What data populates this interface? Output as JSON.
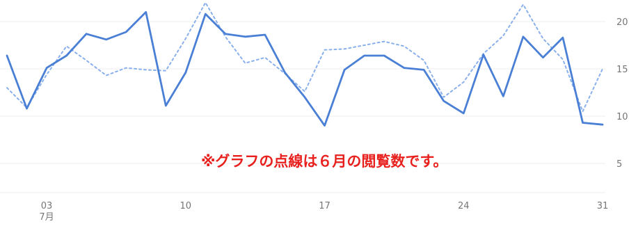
{
  "chart_data": {
    "type": "line",
    "x": [
      "07-01",
      "07-02",
      "07-03",
      "07-04",
      "07-05",
      "07-06",
      "07-07",
      "07-08",
      "07-09",
      "07-10",
      "07-11",
      "07-12",
      "07-13",
      "07-14",
      "07-15",
      "07-16",
      "07-17",
      "07-18",
      "07-19",
      "07-20",
      "07-21",
      "07-22",
      "07-23",
      "07-24",
      "07-25",
      "07-26",
      "07-27",
      "07-28",
      "07-29",
      "07-30",
      "07-31"
    ],
    "x_tick_labels": [
      {
        "index": 2,
        "label": "03",
        "sublabel": "7月"
      },
      {
        "index": 9,
        "label": "10",
        "sublabel": ""
      },
      {
        "index": 16,
        "label": "17",
        "sublabel": ""
      },
      {
        "index": 23,
        "label": "24",
        "sublabel": ""
      },
      {
        "index": 30,
        "label": "31",
        "sublabel": ""
      }
    ],
    "y_ticks": [
      {
        "value": 20,
        "label": "20"
      },
      {
        "value": 15,
        "label": "15"
      },
      {
        "value": 10,
        "label": "10"
      },
      {
        "value": 5,
        "label": "5"
      }
    ],
    "ylim": [
      0,
      22.5
    ],
    "series": [
      {
        "style": "solid",
        "color": "#4a7fd6",
        "values": [
          16.4,
          10.8,
          15.1,
          16.4,
          18.7,
          18.1,
          18.9,
          21.0,
          11.1,
          14.6,
          20.8,
          18.7,
          18.4,
          18.6,
          14.6,
          12.0,
          9.0,
          14.9,
          16.4,
          16.4,
          15.1,
          14.9,
          11.6,
          10.3,
          16.5,
          12.1,
          18.4,
          16.2,
          18.3,
          9.3,
          9.1
        ]
      },
      {
        "style": "dotted",
        "color": "#8ab0ec",
        "values": [
          13.0,
          10.9,
          14.4,
          17.4,
          15.9,
          14.3,
          15.1,
          14.9,
          14.8,
          18.2,
          22.0,
          18.4,
          15.6,
          16.2,
          14.5,
          12.6,
          17.0,
          17.1,
          17.5,
          17.9,
          17.4,
          15.9,
          12.0,
          13.6,
          16.6,
          18.5,
          21.8,
          18.2,
          16.0,
          10.5,
          15.0
        ]
      }
    ],
    "annotation": "※グラフの点線は６月の閲覧数です。",
    "grid": true,
    "legend": "none"
  }
}
